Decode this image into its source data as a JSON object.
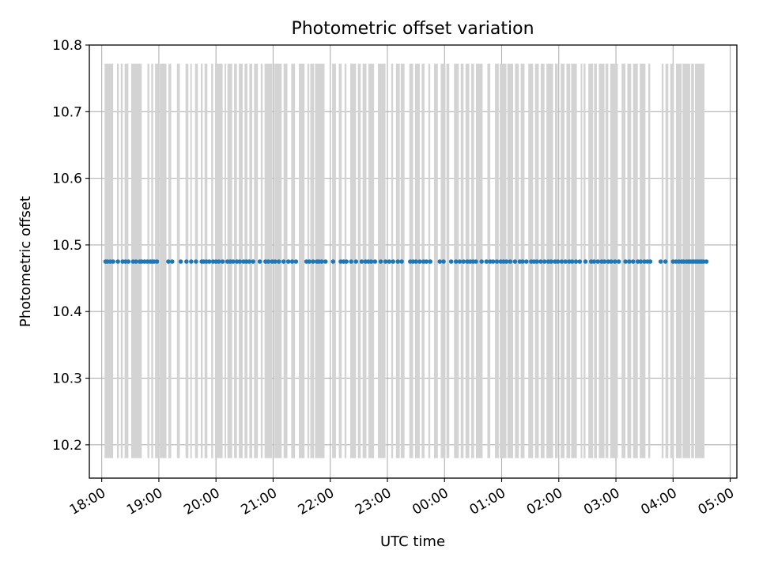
{
  "chart_data": {
    "type": "scatter",
    "title": "Photometric offset variation",
    "xlabel": "UTC time",
    "ylabel": "Photometric offset",
    "xlim": [
      "17:47",
      "05:07"
    ],
    "ylim": [
      10.15,
      10.8
    ],
    "x_ticks": [
      "18:00",
      "19:00",
      "20:00",
      "21:00",
      "22:00",
      "23:00",
      "00:00",
      "01:00",
      "02:00",
      "03:00",
      "04:00",
      "05:00"
    ],
    "y_ticks": [
      "10.2",
      "10.3",
      "10.4",
      "10.5",
      "10.6",
      "10.7",
      "10.8"
    ],
    "grid": true,
    "colors": {
      "points": "#1f77b4",
      "error_bars": "#d3d3d3",
      "grid": "#b0b0b0"
    },
    "series": [
      {
        "values": 10.475,
        "error_range": [
          10.18,
          10.772
        ],
        "x": [
          "18:04",
          "18:06",
          "18:09",
          "18:12",
          "18:17",
          "18:22",
          "18:25",
          "18:28",
          "18:33",
          "18:36",
          "18:40",
          "18:42",
          "18:45",
          "18:48",
          "18:51",
          "18:53",
          "18:55",
          "18:58",
          "19:10",
          "19:14",
          "19:23",
          "19:29",
          "19:34",
          "19:39",
          "19:45",
          "19:47",
          "19:50",
          "19:53",
          "19:57",
          "20:00",
          "20:03",
          "20:07",
          "20:12",
          "20:15",
          "20:18",
          "20:22",
          "20:25",
          "20:29",
          "20:32",
          "20:35",
          "20:39",
          "20:46",
          "20:52",
          "20:55",
          "20:59",
          "21:02",
          "21:06",
          "21:11",
          "21:16",
          "21:20",
          "21:24",
          "21:35",
          "21:38",
          "21:42",
          "21:46",
          "21:48",
          "21:51",
          "21:55",
          "22:03",
          "22:11",
          "22:14",
          "22:17",
          "22:22",
          "22:27",
          "22:33",
          "22:37",
          "22:40",
          "22:43",
          "22:47",
          "22:53",
          "22:58",
          "23:02",
          "23:06",
          "23:11",
          "23:15",
          "23:24",
          "23:27",
          "23:30",
          "23:34",
          "23:38",
          "23:41",
          "23:45",
          "23:55",
          "23:59",
          "00:07",
          "00:12",
          "00:16",
          "00:20",
          "00:24",
          "00:27",
          "00:30",
          "00:33",
          "00:39",
          "00:44",
          "00:48",
          "00:51",
          "00:55",
          "00:59",
          "01:02",
          "01:05",
          "01:09",
          "01:14",
          "01:19",
          "01:22",
          "01:26",
          "01:31",
          "01:34",
          "01:37",
          "01:41",
          "01:45",
          "01:49",
          "01:52",
          "01:56",
          "01:59",
          "02:03",
          "02:07",
          "02:11",
          "02:14",
          "02:18",
          "02:22",
          "02:28",
          "02:34",
          "02:37",
          "02:41",
          "02:45",
          "02:48",
          "02:52",
          "02:55",
          "02:59",
          "03:03",
          "03:10",
          "03:14",
          "03:18",
          "03:23",
          "03:26",
          "03:30",
          "03:33",
          "03:36",
          "03:47",
          "03:52",
          "04:00",
          "04:03",
          "04:06",
          "04:09",
          "04:11",
          "04:14",
          "04:16",
          "04:18",
          "04:20",
          "04:22",
          "04:24",
          "04:26",
          "04:28",
          "04:30",
          "04:32",
          "04:35"
        ]
      }
    ],
    "error_bar_groups": [
      [
        "18:03",
        "18:12"
      ],
      [
        "18:16",
        "18:18"
      ],
      [
        "18:20",
        "18:22"
      ],
      [
        "18:24",
        "18:28"
      ],
      [
        "18:31",
        "18:42"
      ],
      [
        "18:48",
        "18:50"
      ],
      [
        "18:52",
        "18:54"
      ],
      [
        "18:56",
        "19:00"
      ],
      [
        "19:01",
        "19:08"
      ],
      [
        "19:10",
        "19:13"
      ],
      [
        "19:19",
        "19:22"
      ],
      [
        "19:28",
        "19:31"
      ],
      [
        "19:33",
        "19:34"
      ],
      [
        "19:38",
        "19:41"
      ],
      [
        "19:44",
        "19:46"
      ],
      [
        "19:48",
        "19:51"
      ],
      [
        "19:55",
        "19:57"
      ],
      [
        "19:59",
        "20:07"
      ],
      [
        "20:09",
        "20:10"
      ],
      [
        "20:12",
        "20:17"
      ],
      [
        "20:19",
        "20:22"
      ],
      [
        "20:24",
        "20:28"
      ],
      [
        "20:30",
        "20:33"
      ],
      [
        "20:35",
        "20:38"
      ],
      [
        "20:40",
        "20:44"
      ],
      [
        "20:47",
        "20:49"
      ],
      [
        "20:51",
        "20:59"
      ],
      [
        "21:01",
        "21:09"
      ],
      [
        "21:11",
        "21:15"
      ],
      [
        "21:19",
        "21:23"
      ],
      [
        "21:27",
        "21:33"
      ],
      [
        "21:36",
        "21:38"
      ],
      [
        "21:39",
        "21:43"
      ],
      [
        "21:44",
        "21:54"
      ],
      [
        "22:02",
        "22:06"
      ],
      [
        "22:09",
        "22:12"
      ],
      [
        "22:15",
        "22:17"
      ],
      [
        "22:21",
        "22:27"
      ],
      [
        "22:29",
        "22:32"
      ],
      [
        "22:34",
        "22:38"
      ],
      [
        "22:40",
        "22:46"
      ],
      [
        "22:50",
        "22:58"
      ],
      [
        "23:04",
        "23:06"
      ],
      [
        "23:09",
        "23:13"
      ],
      [
        "23:14",
        "23:18"
      ],
      [
        "23:23",
        "23:27"
      ],
      [
        "23:29",
        "23:34"
      ],
      [
        "23:36",
        "23:39"
      ],
      [
        "23:43",
        "23:45"
      ],
      [
        "23:49",
        "23:53"
      ],
      [
        "23:56",
        "00:01"
      ],
      [
        "00:02",
        "00:05"
      ],
      [
        "00:10",
        "00:15"
      ],
      [
        "00:17",
        "00:20"
      ],
      [
        "00:22",
        "00:26"
      ],
      [
        "00:28",
        "00:31"
      ],
      [
        "00:33",
        "00:40"
      ],
      [
        "00:45",
        "00:48"
      ],
      [
        "00:53",
        "00:57"
      ],
      [
        "00:58",
        "01:05"
      ],
      [
        "01:06",
        "01:12"
      ],
      [
        "01:14",
        "01:18"
      ],
      [
        "01:20",
        "01:24"
      ],
      [
        "01:28",
        "01:33"
      ],
      [
        "01:35",
        "01:39"
      ],
      [
        "01:41",
        "01:45"
      ],
      [
        "01:47",
        "01:54"
      ],
      [
        "01:56",
        "01:59"
      ],
      [
        "02:02",
        "02:06"
      ],
      [
        "02:08",
        "02:12"
      ],
      [
        "02:13",
        "02:19"
      ],
      [
        "02:23",
        "02:24"
      ],
      [
        "02:26",
        "02:28"
      ],
      [
        "02:31",
        "02:36"
      ],
      [
        "02:37",
        "02:40"
      ],
      [
        "02:42",
        "02:48"
      ],
      [
        "02:49",
        "02:52"
      ],
      [
        "02:54",
        "03:02"
      ],
      [
        "03:06",
        "03:10"
      ],
      [
        "03:12",
        "03:16"
      ],
      [
        "03:18",
        "03:23"
      ],
      [
        "03:25",
        "03:31"
      ],
      [
        "03:34",
        "03:36"
      ],
      [
        "03:48",
        "03:50"
      ],
      [
        "03:52",
        "03:55"
      ],
      [
        "03:57",
        "04:01"
      ],
      [
        "04:03",
        "04:09"
      ],
      [
        "04:10",
        "04:18"
      ],
      [
        "04:19",
        "04:22"
      ],
      [
        "04:23",
        "04:33"
      ]
    ]
  }
}
